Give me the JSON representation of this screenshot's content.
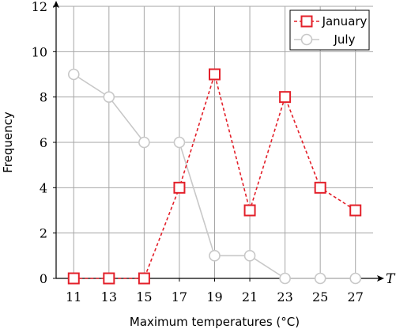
{
  "chart_data": {
    "type": "line",
    "xlabel": "Maximum temperatures (°C)",
    "ylabel": "Frequency",
    "x_axis_variable": "T",
    "x": [
      11,
      13,
      15,
      17,
      19,
      21,
      23,
      25,
      27
    ],
    "xlim": [
      10,
      28
    ],
    "ylim": [
      0,
      12
    ],
    "y_ticks": [
      0,
      2,
      4,
      6,
      8,
      10,
      12
    ],
    "grid": true,
    "legend_position": "top-right",
    "series": [
      {
        "name": "January",
        "values": [
          0,
          0,
          0,
          4,
          9,
          3,
          8,
          4,
          3
        ],
        "color": "#e3202a",
        "line_style": "dashed",
        "marker": "square"
      },
      {
        "name": "July",
        "values": [
          9,
          8,
          6,
          6,
          1,
          1,
          0,
          0,
          0
        ],
        "color": "#c8c8c8",
        "line_style": "solid",
        "marker": "circle"
      }
    ]
  }
}
